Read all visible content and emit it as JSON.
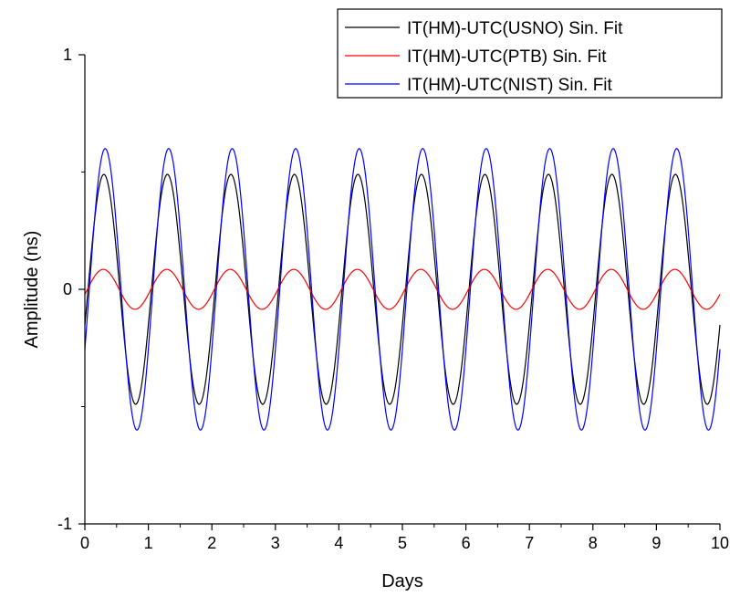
{
  "chart_data": {
    "type": "line",
    "xlabel": "Days",
    "ylabel": "Amplitude (ns)",
    "xlim": [
      0,
      10
    ],
    "ylim": [
      -1,
      1
    ],
    "x_ticks": [
      "0",
      "1",
      "2",
      "3",
      "4",
      "5",
      "6",
      "7",
      "8",
      "9",
      "10"
    ],
    "y_ticks": [
      "-1",
      "0",
      "1"
    ],
    "grid": false,
    "legend_position": "top-right",
    "series": [
      {
        "name": "IT(HM)-UTC(USNO) Sin. Fit",
        "color": "#000000",
        "model": "sine",
        "amplitude": 0.49,
        "period_days": 1.0,
        "phase_shift_days": -0.05,
        "x_range": [
          0,
          10
        ]
      },
      {
        "name": "IT(HM)-UTC(PTB) Sin. Fit",
        "color": "#ff0000",
        "model": "sine",
        "amplitude": 0.085,
        "period_days": 1.0,
        "phase_shift_days": -0.04,
        "x_range": [
          0,
          10
        ]
      },
      {
        "name": "IT(HM)-UTC(NIST) Sin. Fit",
        "color": "#0000ff",
        "model": "sine",
        "amplitude": 0.6,
        "period_days": 1.0,
        "phase_shift_days": -0.07,
        "x_range": [
          0,
          10
        ]
      }
    ]
  }
}
